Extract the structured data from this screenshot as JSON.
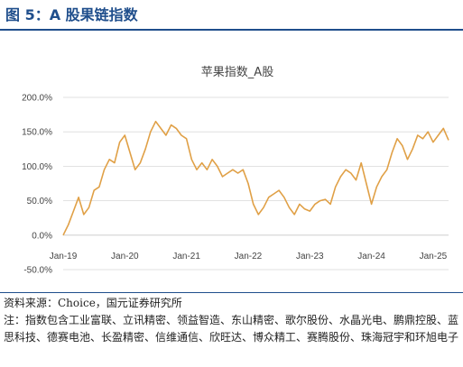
{
  "figure": {
    "title": "图 5：A 股果链指数",
    "source": "资料来源：Choice，国元证券研究所",
    "note": "注：指数包含工业富联、立讯精密、领益智造、东山精密、歌尔股份、水晶光电、鹏鼎控股、蓝思科技、德赛电池、长盈精密、信维通信、欣旺达、博众精工、赛腾股份、珠海冠宇和环旭电子"
  },
  "colors": {
    "accent": "#1f4e8c",
    "series": "#e0a046",
    "grid": "#d9d9d9",
    "axis": "#c8c8c8"
  },
  "chart_data": {
    "type": "line",
    "title": "苹果指数_A股",
    "xlabel": "",
    "ylabel": "",
    "ylim": [
      -0.5,
      2.0
    ],
    "yticks": [
      -0.5,
      0.0,
      0.5,
      1.0,
      1.5,
      2.0
    ],
    "ytick_labels": [
      "-50.0%",
      "0.0%",
      "50.0%",
      "100.0%",
      "150.0%",
      "200.0%"
    ],
    "xticks": [
      "Jan-19",
      "Jan-20",
      "Jan-21",
      "Jan-22",
      "Jan-23",
      "Jan-24",
      "Jan-25"
    ],
    "xlim": [
      "2019-01",
      "2025-04"
    ],
    "grid": true,
    "legend": "none",
    "series": [
      {
        "x": [
          "2019-01",
          "2019-02",
          "2019-03",
          "2019-04",
          "2019-05",
          "2019-06",
          "2019-07",
          "2019-08",
          "2019-09",
          "2019-10",
          "2019-11",
          "2019-12",
          "2020-01",
          "2020-02",
          "2020-03",
          "2020-04",
          "2020-05",
          "2020-06",
          "2020-07",
          "2020-08",
          "2020-09",
          "2020-10",
          "2020-11",
          "2020-12",
          "2021-01",
          "2021-02",
          "2021-03",
          "2021-04",
          "2021-05",
          "2021-06",
          "2021-07",
          "2021-08",
          "2021-09",
          "2021-10",
          "2021-11",
          "2021-12",
          "2022-01",
          "2022-02",
          "2022-03",
          "2022-04",
          "2022-05",
          "2022-06",
          "2022-07",
          "2022-08",
          "2022-09",
          "2022-10",
          "2022-11",
          "2022-12",
          "2023-01",
          "2023-02",
          "2023-03",
          "2023-04",
          "2023-05",
          "2023-06",
          "2023-07",
          "2023-08",
          "2023-09",
          "2023-10",
          "2023-11",
          "2023-12",
          "2024-01",
          "2024-02",
          "2024-03",
          "2024-04",
          "2024-05",
          "2024-06",
          "2024-07",
          "2024-08",
          "2024-09",
          "2024-10",
          "2024-11",
          "2024-12",
          "2025-01",
          "2025-02",
          "2025-03",
          "2025-04"
        ],
        "values": [
          0.0,
          0.15,
          0.35,
          0.55,
          0.3,
          0.4,
          0.65,
          0.7,
          0.95,
          1.1,
          1.05,
          1.35,
          1.45,
          1.2,
          0.95,
          1.05,
          1.25,
          1.5,
          1.65,
          1.55,
          1.45,
          1.6,
          1.55,
          1.45,
          1.4,
          1.1,
          0.95,
          1.05,
          0.95,
          1.1,
          1.0,
          0.85,
          0.9,
          0.95,
          0.9,
          0.95,
          0.75,
          0.45,
          0.3,
          0.4,
          0.55,
          0.6,
          0.65,
          0.55,
          0.4,
          0.3,
          0.45,
          0.38,
          0.35,
          0.45,
          0.5,
          0.52,
          0.45,
          0.7,
          0.85,
          0.95,
          0.9,
          0.8,
          1.05,
          0.75,
          0.45,
          0.7,
          0.85,
          0.95,
          1.2,
          1.4,
          1.3,
          1.1,
          1.25,
          1.45,
          1.4,
          1.5,
          1.35,
          1.45,
          1.55,
          1.38
        ]
      }
    ]
  }
}
